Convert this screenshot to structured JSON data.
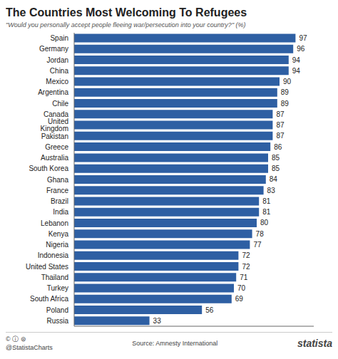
{
  "chart_data": {
    "type": "bar",
    "orientation": "horizontal",
    "title": "The Countries Most Welcoming To Refugees",
    "subtitle": "\"Would you personally accept people fleeing war/persecution into your country?\" (%)",
    "annotations": [
      "© ⓘ ⊜",
      "@StatistaCharts",
      "Source: Amnesty International",
      "statista"
    ],
    "categories": [
      "Spain",
      "Germany",
      "Jordan",
      "China",
      "Mexico",
      "Argentina",
      "Chile",
      "Canada",
      "United Kingdom",
      "Pakistan",
      "Greece",
      "Australia",
      "South Korea",
      "Ghana",
      "France",
      "Brazil",
      "India",
      "Lebanon",
      "Kenya",
      "Nigeria",
      "Indonesia",
      "United States",
      "Thailand",
      "Turkey",
      "South Africa",
      "Poland",
      "Russia"
    ],
    "values": [
      97,
      96,
      94,
      94,
      90,
      89,
      89,
      87,
      87,
      87,
      86,
      85,
      85,
      84,
      83,
      81,
      81,
      80,
      78,
      77,
      72,
      72,
      71,
      70,
      69,
      56,
      33
    ],
    "color": "#2e5fa3",
    "xlim": [
      0,
      105
    ],
    "data_labels": true,
    "tick_labels": "y",
    "grid": false
  }
}
